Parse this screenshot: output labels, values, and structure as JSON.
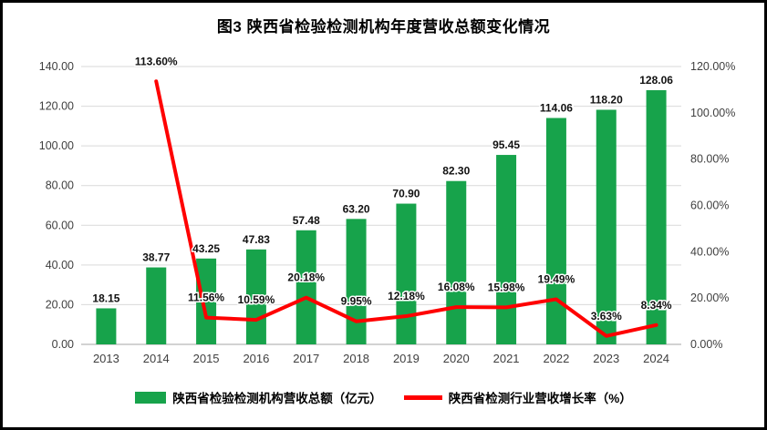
{
  "title": "图3  陕西省检验检测机构年度营收总额变化情况",
  "legend": {
    "bar_label": "陕西省检验检测机构营收总额（亿元）",
    "line_label": "陕西省检测行业营收增长率（%）"
  },
  "chart_data": {
    "type": "bar",
    "subtype": "bar+line combo",
    "title": "图3  陕西省检验检测机构年度营收总额变化情况",
    "categories": [
      "2013",
      "2014",
      "2015",
      "2016",
      "2017",
      "2018",
      "2019",
      "2020",
      "2021",
      "2022",
      "2023",
      "2024"
    ],
    "series": [
      {
        "name": "陕西省检验检测机构营收总额（亿元）",
        "type": "bar",
        "axis": "left",
        "color": "#17A34B",
        "values": [
          18.15,
          38.77,
          43.25,
          47.83,
          57.48,
          63.2,
          70.9,
          82.3,
          95.45,
          114.06,
          118.2,
          128.06
        ]
      },
      {
        "name": "陕西省检测行业营收增长率（%）",
        "type": "line",
        "axis": "right",
        "color": "#FF0000",
        "values": [
          null,
          113.6,
          11.56,
          10.59,
          20.18,
          9.95,
          12.18,
          16.08,
          15.98,
          19.49,
          3.63,
          8.34
        ]
      }
    ],
    "bar_labels": [
      "18.15",
      "38.77",
      "43.25",
      "47.83",
      "57.48",
      "63.20",
      "70.90",
      "82.30",
      "95.45",
      "114.06",
      "118.20",
      "128.06"
    ],
    "line_labels": [
      "",
      "113.60%",
      "11.56%",
      "10.59%",
      "20.18%",
      "9.95%",
      "12.18%",
      "16.08%",
      "15.98%",
      "19.49%",
      "3.63%",
      "8.34%"
    ],
    "left_axis": {
      "min": 0,
      "max": 140,
      "step": 20
    },
    "right_axis": {
      "min": 0,
      "max": 120,
      "step": 20
    },
    "left_ticks": [
      "140.00",
      "120.00",
      "100.00",
      "80.00",
      "60.00",
      "40.00",
      "20.00",
      "0.00"
    ],
    "right_ticks": [
      "120.00%",
      "100.00%",
      "80.00%",
      "60.00%",
      "40.00%",
      "20.00%",
      "0.00%"
    ],
    "grid": true,
    "legend_position": "bottom",
    "colors": {
      "gridline": "#d9d9d9",
      "axis_line": "#a6a6a6",
      "axis_text": "#3f3f3f",
      "label_text": "#111111",
      "border": "#000000",
      "background": "#ffffff"
    }
  }
}
